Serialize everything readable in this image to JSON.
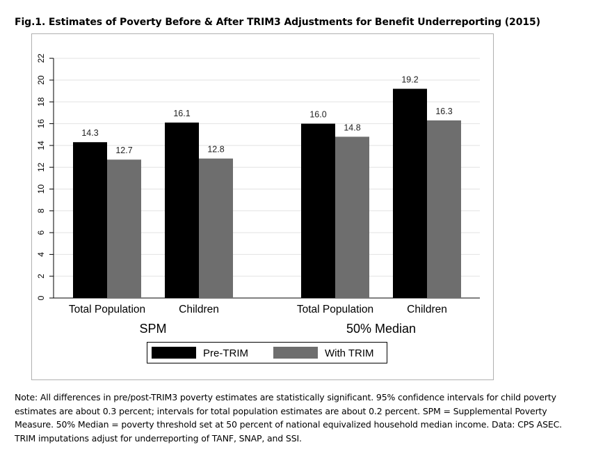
{
  "figure_title": "Fig.1. Estimates of Poverty Before & After TRIM3 Adjustments for Benefit Underreporting (2015)",
  "note": "Note: All differences in pre/post-TRIM3 poverty estimates are statistically significant. 95% confidence intervals for child poverty estimates are about 0.3 percent; intervals for total population estimates are about 0.2 percent. SPM = Supplemental Poverty Measure. 50% Median = poverty threshold set at 50 percent of national equivalized household median income. Data: CPS ASEC. TRIM imputations adjust for underreporting of TANF, SNAP, and SSI.",
  "chart_data": {
    "type": "bar",
    "title": "",
    "xlabel": "",
    "ylabel": "",
    "ylim": [
      0,
      22
    ],
    "yticks": [
      0,
      2,
      4,
      6,
      8,
      10,
      12,
      14,
      16,
      18,
      20,
      22
    ],
    "grid": true,
    "legend_position": "bottom",
    "groups": [
      {
        "label": "SPM",
        "categories": [
          "Total Population",
          "Children"
        ]
      },
      {
        "label": "50% Median",
        "categories": [
          "Total Population",
          "Children"
        ]
      }
    ],
    "series": [
      {
        "name": "Pre-TRIM",
        "color": "#000000",
        "values": [
          14.3,
          16.1,
          16.0,
          19.2
        ],
        "labels": [
          "14.3",
          "16.1",
          "16.0",
          "19.2"
        ]
      },
      {
        "name": "With TRIM",
        "color": "#6e6e6e",
        "values": [
          12.7,
          12.8,
          14.8,
          16.3
        ],
        "labels": [
          "12.7",
          "12.8",
          "14.8",
          "16.3"
        ]
      }
    ]
  }
}
